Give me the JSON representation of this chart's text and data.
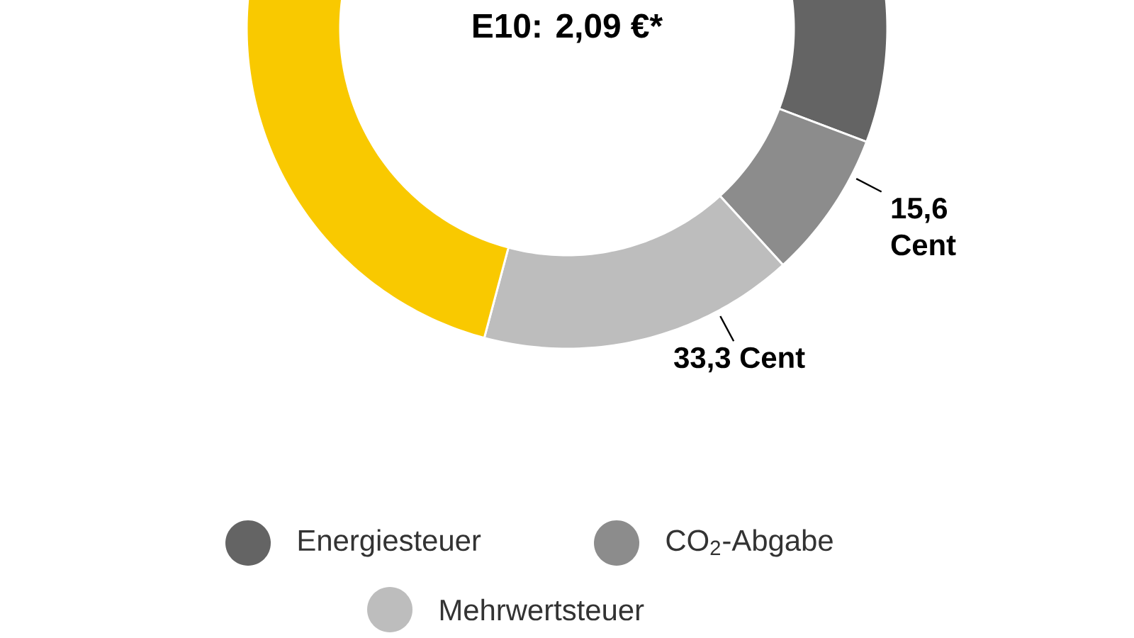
{
  "chart_data": {
    "type": "donut",
    "title": "E10: 2,09 €*",
    "categories": [
      "Energiesteuer",
      "CO$_{2}$-Abgabe",
      "Mehrwertsteuer",
      null
    ],
    "values": [
      65.45,
      15.6,
      33.3,
      94.65
    ],
    "colors": [
      "#646464",
      "#8c8c8c",
      "#bdbdbd",
      "#f9c900"
    ],
    "value_labels": [
      null,
      "15,6 Cent",
      "33,3 Cent",
      null
    ],
    "legend": "bottom"
  }
}
